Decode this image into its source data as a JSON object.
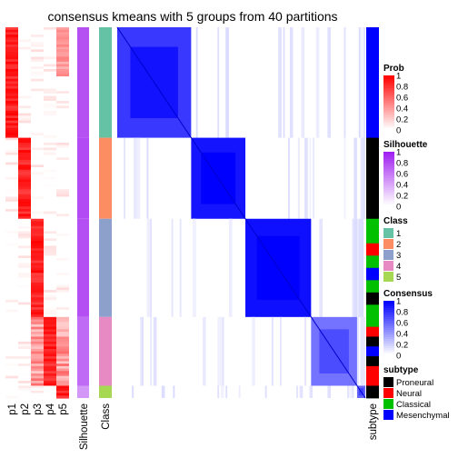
{
  "chart_data": {
    "type": "heatmap",
    "title": "consensus kmeans with 5 groups from 40 partitions",
    "groups": [
      {
        "class": 1,
        "n": 45,
        "prob_col": 0,
        "silhouette": 0.92,
        "color": "#66C2A5",
        "subtypes": [
          "Mesenchymal"
        ],
        "consensus_within": 0.78
      },
      {
        "class": 2,
        "n": 33,
        "prob_col": 1,
        "silhouette": 0.95,
        "color": "#FC8D62",
        "subtypes": [
          "Proneural"
        ],
        "consensus_within": 0.92
      },
      {
        "class": 3,
        "n": 40,
        "prob_col": 2,
        "silhouette": 0.93,
        "color": "#8DA0CB",
        "subtypes": [
          "Classical",
          "Classical",
          "Neural",
          "Classical",
          "Mesenchymal",
          "Classical",
          "Proneural",
          "Classical"
        ],
        "consensus_within": 0.94
      },
      {
        "class": 4,
        "n": 28,
        "prob_col": 3,
        "silhouette": 0.78,
        "color": "#E78AC3",
        "subtypes": [
          "Classical",
          "Neural",
          "Proneural",
          "Mesenchymal",
          "Proneural",
          "Neural",
          "Neural"
        ],
        "consensus_within": 0.55
      },
      {
        "class": 5,
        "n": 5,
        "prob_col": 4,
        "silhouette": 0.55,
        "color": "#A6D854",
        "subtypes": [
          "Proneural"
        ],
        "consensus_within": 0.6
      }
    ],
    "x_labels": [
      "p1",
      "p2",
      "p3",
      "p4",
      "p5",
      "Silhouette",
      "Class",
      "subtype"
    ],
    "legends": [
      {
        "title": "Prob",
        "type": "continuous",
        "ticks": [
          "1",
          "0.8",
          "0.6",
          "0.4",
          "0.2",
          "0"
        ],
        "colors": [
          "#FF0000",
          "#FFFFFF"
        ]
      },
      {
        "title": "Silhouette",
        "type": "continuous",
        "ticks": [
          "1",
          "0.8",
          "0.6",
          "0.4",
          "0.2",
          "0"
        ],
        "colors": [
          "#A020F0",
          "#FFFFFF"
        ]
      },
      {
        "title": "Class",
        "type": "discrete",
        "items": [
          {
            "label": "1",
            "color": "#66C2A5"
          },
          {
            "label": "2",
            "color": "#FC8D62"
          },
          {
            "label": "3",
            "color": "#8DA0CB"
          },
          {
            "label": "4",
            "color": "#E78AC3"
          },
          {
            "label": "5",
            "color": "#A6D854"
          }
        ]
      },
      {
        "title": "Consensus",
        "type": "continuous",
        "ticks": [
          "1",
          "0.8",
          "0.6",
          "0.4",
          "0.2",
          "0"
        ],
        "colors": [
          "#0000FF",
          "#FFFFFF"
        ]
      },
      {
        "title": "subtype",
        "type": "discrete",
        "items": [
          {
            "label": "Proneural",
            "color": "#000000"
          },
          {
            "label": "Neural",
            "color": "#FF0000"
          },
          {
            "label": "Classical",
            "color": "#00C000"
          },
          {
            "label": "Mesenchymal",
            "color": "#0000FF"
          }
        ]
      }
    ]
  }
}
